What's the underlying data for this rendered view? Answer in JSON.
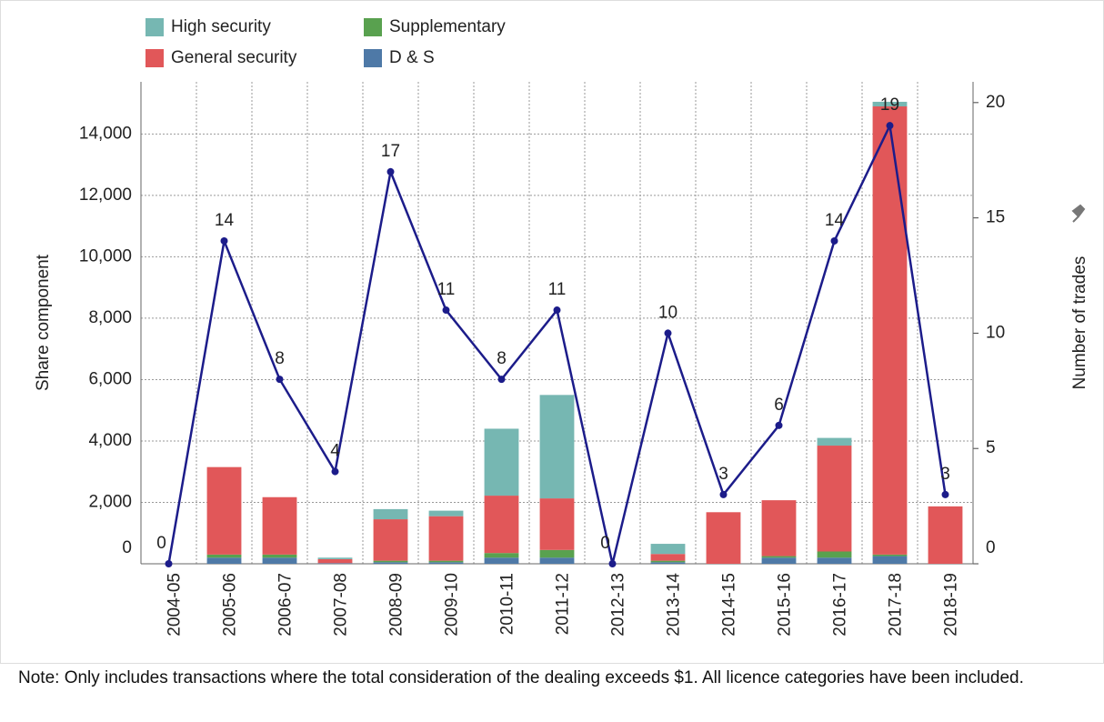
{
  "chart_data": {
    "type": "bar",
    "stacked": true,
    "categories": [
      "2004-05",
      "2005-06",
      "2006-07",
      "2007-08",
      "2008-09",
      "2009-10",
      "2010-11",
      "2011-12",
      "2012-13",
      "2013-14",
      "2014-15",
      "2015-16",
      "2016-17",
      "2017-18",
      "2018-19"
    ],
    "series": [
      {
        "name": "D & S",
        "color": "#4e79a7",
        "values": [
          0,
          200,
          200,
          20,
          50,
          50,
          200,
          200,
          0,
          50,
          0,
          200,
          200,
          250,
          0
        ]
      },
      {
        "name": "Supplementary",
        "color": "#59a14f",
        "values": [
          0,
          100,
          100,
          0,
          50,
          50,
          150,
          250,
          0,
          50,
          0,
          50,
          200,
          50,
          0
        ]
      },
      {
        "name": "General security",
        "color": "#e15759",
        "values": [
          0,
          2850,
          1870,
          130,
          1350,
          1450,
          1870,
          1680,
          0,
          220,
          1680,
          1820,
          3450,
          14600,
          1870
        ]
      },
      {
        "name": "High security",
        "color": "#76b7b2",
        "values": [
          0,
          0,
          0,
          50,
          330,
          180,
          2180,
          3370,
          0,
          330,
          0,
          0,
          250,
          150,
          0
        ]
      }
    ],
    "line": {
      "type": "line",
      "axis": "y2",
      "color": "#1c1c8a",
      "values": [
        0,
        14,
        8,
        4,
        17,
        11,
        8,
        11,
        0,
        10,
        3,
        6,
        14,
        19,
        3
      ]
    },
    "ylabel": "Share component",
    "y2label": "Number of trades",
    "ylim": [
      0,
      15700
    ],
    "yticks": [
      0,
      {
        "value": 2000,
        "label": "2,000"
      },
      {
        "value": 4000,
        "label": "4,000"
      },
      {
        "value": 6000,
        "label": "6,000"
      },
      {
        "value": 8000,
        "label": "8,000"
      },
      {
        "value": 10000,
        "label": "10,000"
      },
      {
        "value": 12000,
        "label": "12,000"
      },
      {
        "value": 14000,
        "label": "14,000"
      }
    ],
    "y2lim": [
      0,
      20.9
    ],
    "y2ticks": [
      0,
      5,
      10,
      15,
      20
    ],
    "grid": true,
    "note": "Note: Only includes transactions where the total consideration of the dealing exceeds $1. All licence categories have been included."
  }
}
